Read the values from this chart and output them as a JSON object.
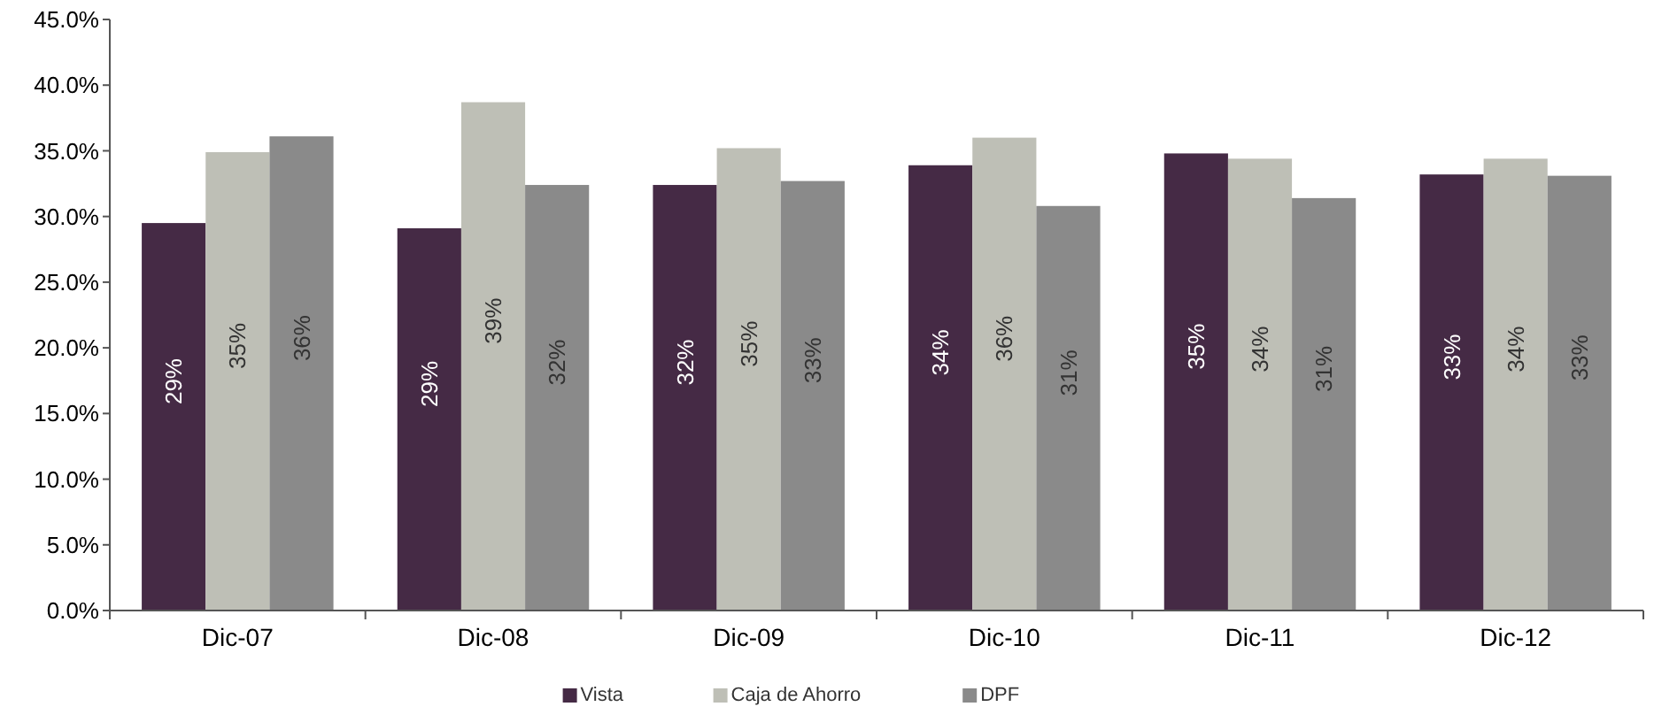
{
  "chart_data": {
    "type": "bar",
    "categories": [
      "Dic-07",
      "Dic-08",
      "Dic-09",
      "Dic-10",
      "Dic-11",
      "Dic-12"
    ],
    "series": [
      {
        "name": "Vista",
        "color": "#452a45",
        "values": [
          29.5,
          29.1,
          32.4,
          33.9,
          34.8,
          33.2
        ],
        "value_labels": [
          "29%",
          "29%",
          "32%",
          "34%",
          "35%",
          "33%"
        ]
      },
      {
        "name": "Caja de Ahorro",
        "color": "#bebfb6",
        "values": [
          34.9,
          38.7,
          35.2,
          36.0,
          34.4,
          34.4
        ],
        "value_labels": [
          "35%",
          "39%",
          "35%",
          "36%",
          "34%",
          "34%"
        ]
      },
      {
        "name": "DPF",
        "color": "#8a8a8a",
        "values": [
          36.1,
          32.4,
          32.7,
          30.8,
          31.4,
          33.1
        ],
        "value_labels": [
          "36%",
          "32%",
          "33%",
          "31%",
          "31%",
          "33%"
        ]
      }
    ],
    "ylim": [
      0,
      45
    ],
    "yticks": [
      {
        "value": 0,
        "label": "0.0%"
      },
      {
        "value": 5,
        "label": "5.0%"
      },
      {
        "value": 10,
        "label": "10.0%"
      },
      {
        "value": 15,
        "label": "15.0%"
      },
      {
        "value": 20,
        "label": "20.0%"
      },
      {
        "value": 25,
        "label": "25.0%"
      },
      {
        "value": 30,
        "label": "30.0%"
      },
      {
        "value": 35,
        "label": "35.0%"
      },
      {
        "value": 40,
        "label": "40.0%"
      },
      {
        "value": 45,
        "label": "45.0%"
      }
    ],
    "grid": false,
    "legend": "bottom"
  }
}
